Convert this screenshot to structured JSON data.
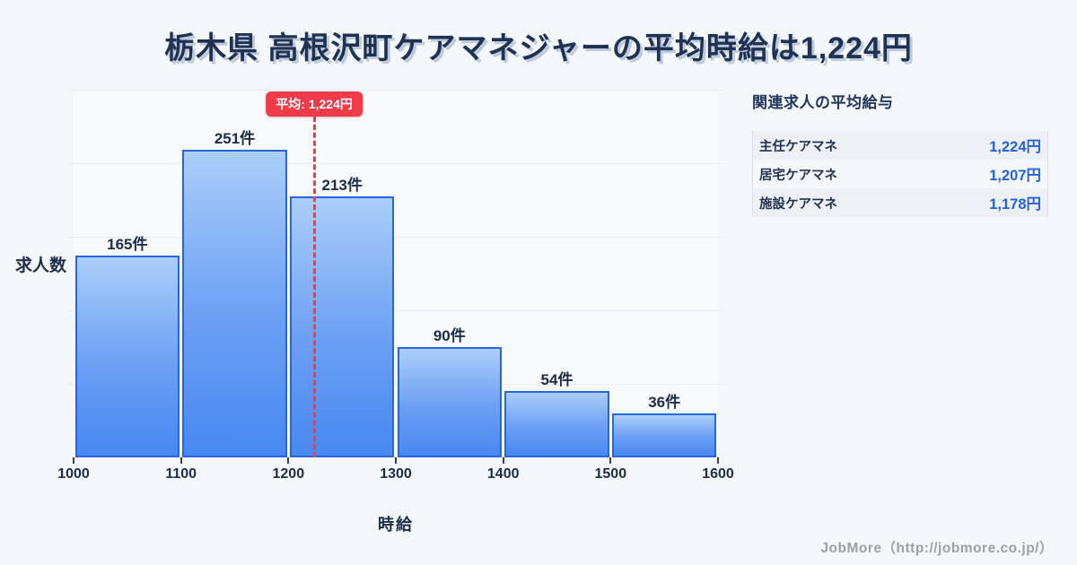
{
  "title": "栃木県 高根沢町ケアマネジャーの平均時給は1,224円",
  "chart_data": {
    "type": "bar",
    "subtype": "histogram",
    "bin_edges": [
      1000,
      1100,
      1200,
      1300,
      1400,
      1500,
      1600
    ],
    "values": [
      165,
      251,
      213,
      90,
      54,
      36
    ],
    "labels": [
      "165件",
      "251件",
      "213件",
      "90件",
      "54件",
      "36件"
    ],
    "x_tick_labels": [
      "1000",
      "1100",
      "1200",
      "1300",
      "1400",
      "1500",
      "1600"
    ],
    "xlabel": "時給",
    "ylabel": "求人数",
    "ylim": [
      0,
      300
    ],
    "grid_step": 60,
    "grid_on": true,
    "average": {
      "value": 1224,
      "badge": "平均: 1,224円"
    },
    "colors": {
      "bar_fill_top": "#abcef9",
      "bar_fill_bottom": "#4888f1",
      "bar_border": "#2766df",
      "average_red": "#ee3a49",
      "title_navy": "#203251"
    }
  },
  "side_panel": {
    "title": "関連求人の平均給与",
    "rows": [
      {
        "label": "主任ケアマネ",
        "value": "1,224円"
      },
      {
        "label": "居宅ケアマネ",
        "value": "1,207円"
      },
      {
        "label": "施設ケアマネ",
        "value": "1,178円"
      }
    ],
    "value_color": "#2563d9"
  },
  "footer": {
    "credit": "JobMore（http://jobmore.co.jp/）"
  }
}
